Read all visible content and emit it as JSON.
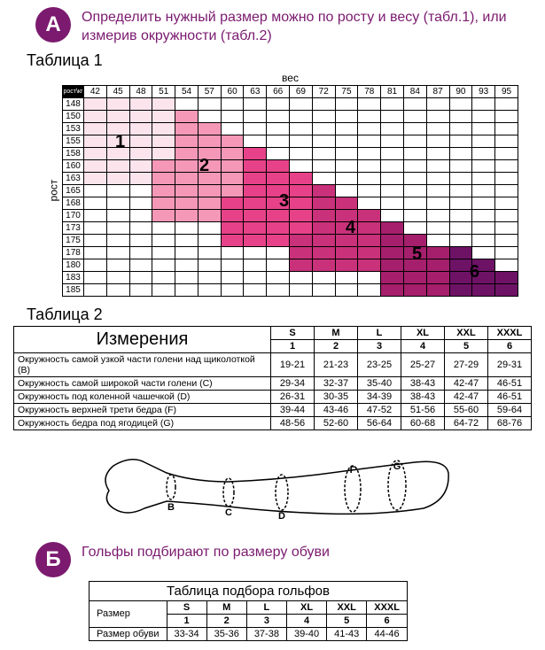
{
  "sectionA": {
    "badge": "А",
    "title": "Определить нужный размер можно по росту и весу (табл.1), или измерив окружности (табл.2)"
  },
  "table1": {
    "label": "Таблица 1",
    "axis_top": "вес",
    "axis_left": "рост",
    "weights": [
      "42",
      "45",
      "48",
      "51",
      "54",
      "57",
      "60",
      "63",
      "66",
      "69",
      "72",
      "75",
      "78",
      "81",
      "84",
      "87",
      "90",
      "93",
      "95"
    ],
    "heights": [
      "148",
      "150",
      "153",
      "155",
      "158",
      "160",
      "163",
      "165",
      "168",
      "170",
      "173",
      "175",
      "178",
      "180",
      "183",
      "185"
    ],
    "zone_colors": {
      "z1": "#fce4ec",
      "z2": "#f598b8",
      "z3": "#e74289",
      "z4": "#c9317a",
      "z5": "#a51f6c",
      "z6": "#6e1266"
    },
    "zone_labels": [
      "1",
      "2",
      "3",
      "4",
      "5",
      "6"
    ],
    "grid": [
      [
        1,
        1,
        1,
        1,
        0,
        0,
        0,
        0,
        0,
        0,
        0,
        0,
        0,
        0,
        0,
        0,
        0,
        0,
        0
      ],
      [
        1,
        1,
        1,
        1,
        2,
        0,
        0,
        0,
        0,
        0,
        0,
        0,
        0,
        0,
        0,
        0,
        0,
        0,
        0
      ],
      [
        1,
        1,
        1,
        1,
        2,
        2,
        0,
        0,
        0,
        0,
        0,
        0,
        0,
        0,
        0,
        0,
        0,
        0,
        0
      ],
      [
        1,
        1,
        1,
        1,
        2,
        2,
        2,
        0,
        0,
        0,
        0,
        0,
        0,
        0,
        0,
        0,
        0,
        0,
        0
      ],
      [
        1,
        1,
        1,
        1,
        2,
        2,
        2,
        3,
        0,
        0,
        0,
        0,
        0,
        0,
        0,
        0,
        0,
        0,
        0
      ],
      [
        1,
        1,
        1,
        2,
        2,
        2,
        2,
        3,
        3,
        0,
        0,
        0,
        0,
        0,
        0,
        0,
        0,
        0,
        0
      ],
      [
        1,
        1,
        1,
        2,
        2,
        2,
        2,
        3,
        3,
        3,
        0,
        0,
        0,
        0,
        0,
        0,
        0,
        0,
        0
      ],
      [
        0,
        0,
        0,
        2,
        2,
        2,
        2,
        3,
        3,
        3,
        4,
        0,
        0,
        0,
        0,
        0,
        0,
        0,
        0
      ],
      [
        0,
        0,
        0,
        2,
        2,
        2,
        3,
        3,
        3,
        3,
        4,
        4,
        0,
        0,
        0,
        0,
        0,
        0,
        0
      ],
      [
        0,
        0,
        0,
        2,
        2,
        2,
        3,
        3,
        3,
        3,
        4,
        4,
        4,
        0,
        0,
        0,
        0,
        0,
        0
      ],
      [
        0,
        0,
        0,
        0,
        0,
        0,
        3,
        3,
        3,
        3,
        4,
        4,
        4,
        5,
        0,
        0,
        0,
        0,
        0
      ],
      [
        0,
        0,
        0,
        0,
        0,
        0,
        3,
        3,
        3,
        4,
        4,
        4,
        4,
        5,
        5,
        0,
        0,
        0,
        0
      ],
      [
        0,
        0,
        0,
        0,
        0,
        0,
        0,
        0,
        0,
        4,
        4,
        4,
        4,
        5,
        5,
        5,
        6,
        0,
        0
      ],
      [
        0,
        0,
        0,
        0,
        0,
        0,
        0,
        0,
        0,
        4,
        4,
        4,
        4,
        5,
        5,
        5,
        6,
        6,
        0
      ],
      [
        0,
        0,
        0,
        0,
        0,
        0,
        0,
        0,
        0,
        0,
        0,
        0,
        0,
        5,
        5,
        5,
        6,
        6,
        6
      ],
      [
        0,
        0,
        0,
        0,
        0,
        0,
        0,
        0,
        0,
        0,
        0,
        0,
        0,
        5,
        5,
        5,
        6,
        6,
        6
      ]
    ]
  },
  "table2": {
    "label": "Таблица 2",
    "meas_head": "Измерения",
    "size_labels": [
      "S",
      "M",
      "L",
      "XL",
      "XXL",
      "XXXL"
    ],
    "size_nums": [
      "1",
      "2",
      "3",
      "4",
      "5",
      "6"
    ],
    "rows": [
      {
        "label": "Окружность самой узкой части голени над щиколоткой (B)",
        "vals": [
          "19-21",
          "21-23",
          "23-25",
          "25-27",
          "27-29",
          "29-31"
        ]
      },
      {
        "label": "Окружность самой широкой части голени (C)",
        "vals": [
          "29-34",
          "32-37",
          "35-40",
          "38-43",
          "42-47",
          "46-51"
        ]
      },
      {
        "label": "Окружность под коленной чашечкой (D)",
        "vals": [
          "26-31",
          "30-35",
          "34-39",
          "38-43",
          "42-47",
          "46-51"
        ]
      },
      {
        "label": "Окружность верхней трети бедра (F)",
        "vals": [
          "39-44",
          "43-46",
          "47-52",
          "51-56",
          "55-60",
          "59-64"
        ]
      },
      {
        "label": "Окружность бедра под ягодицей (G)",
        "vals": [
          "48-56",
          "52-60",
          "56-64",
          "60-68",
          "64-72",
          "68-76"
        ]
      }
    ]
  },
  "leg": {
    "markers": [
      "B",
      "C",
      "D",
      "F",
      "G"
    ]
  },
  "sectionB": {
    "badge": "Б",
    "title": "Гольфы подбирают по размеру обуви"
  },
  "table3": {
    "caption": "Таблица подбора гольфов",
    "row_head": "Размер",
    "size_labels": [
      "S",
      "M",
      "L",
      "XL",
      "XXL",
      "XXXL"
    ],
    "size_nums": [
      "1",
      "2",
      "3",
      "4",
      "5",
      "6"
    ],
    "shoe_label": "Размер обуви",
    "shoe_vals": [
      "33-34",
      "35-36",
      "37-38",
      "39-40",
      "41-43",
      "44-46"
    ]
  }
}
